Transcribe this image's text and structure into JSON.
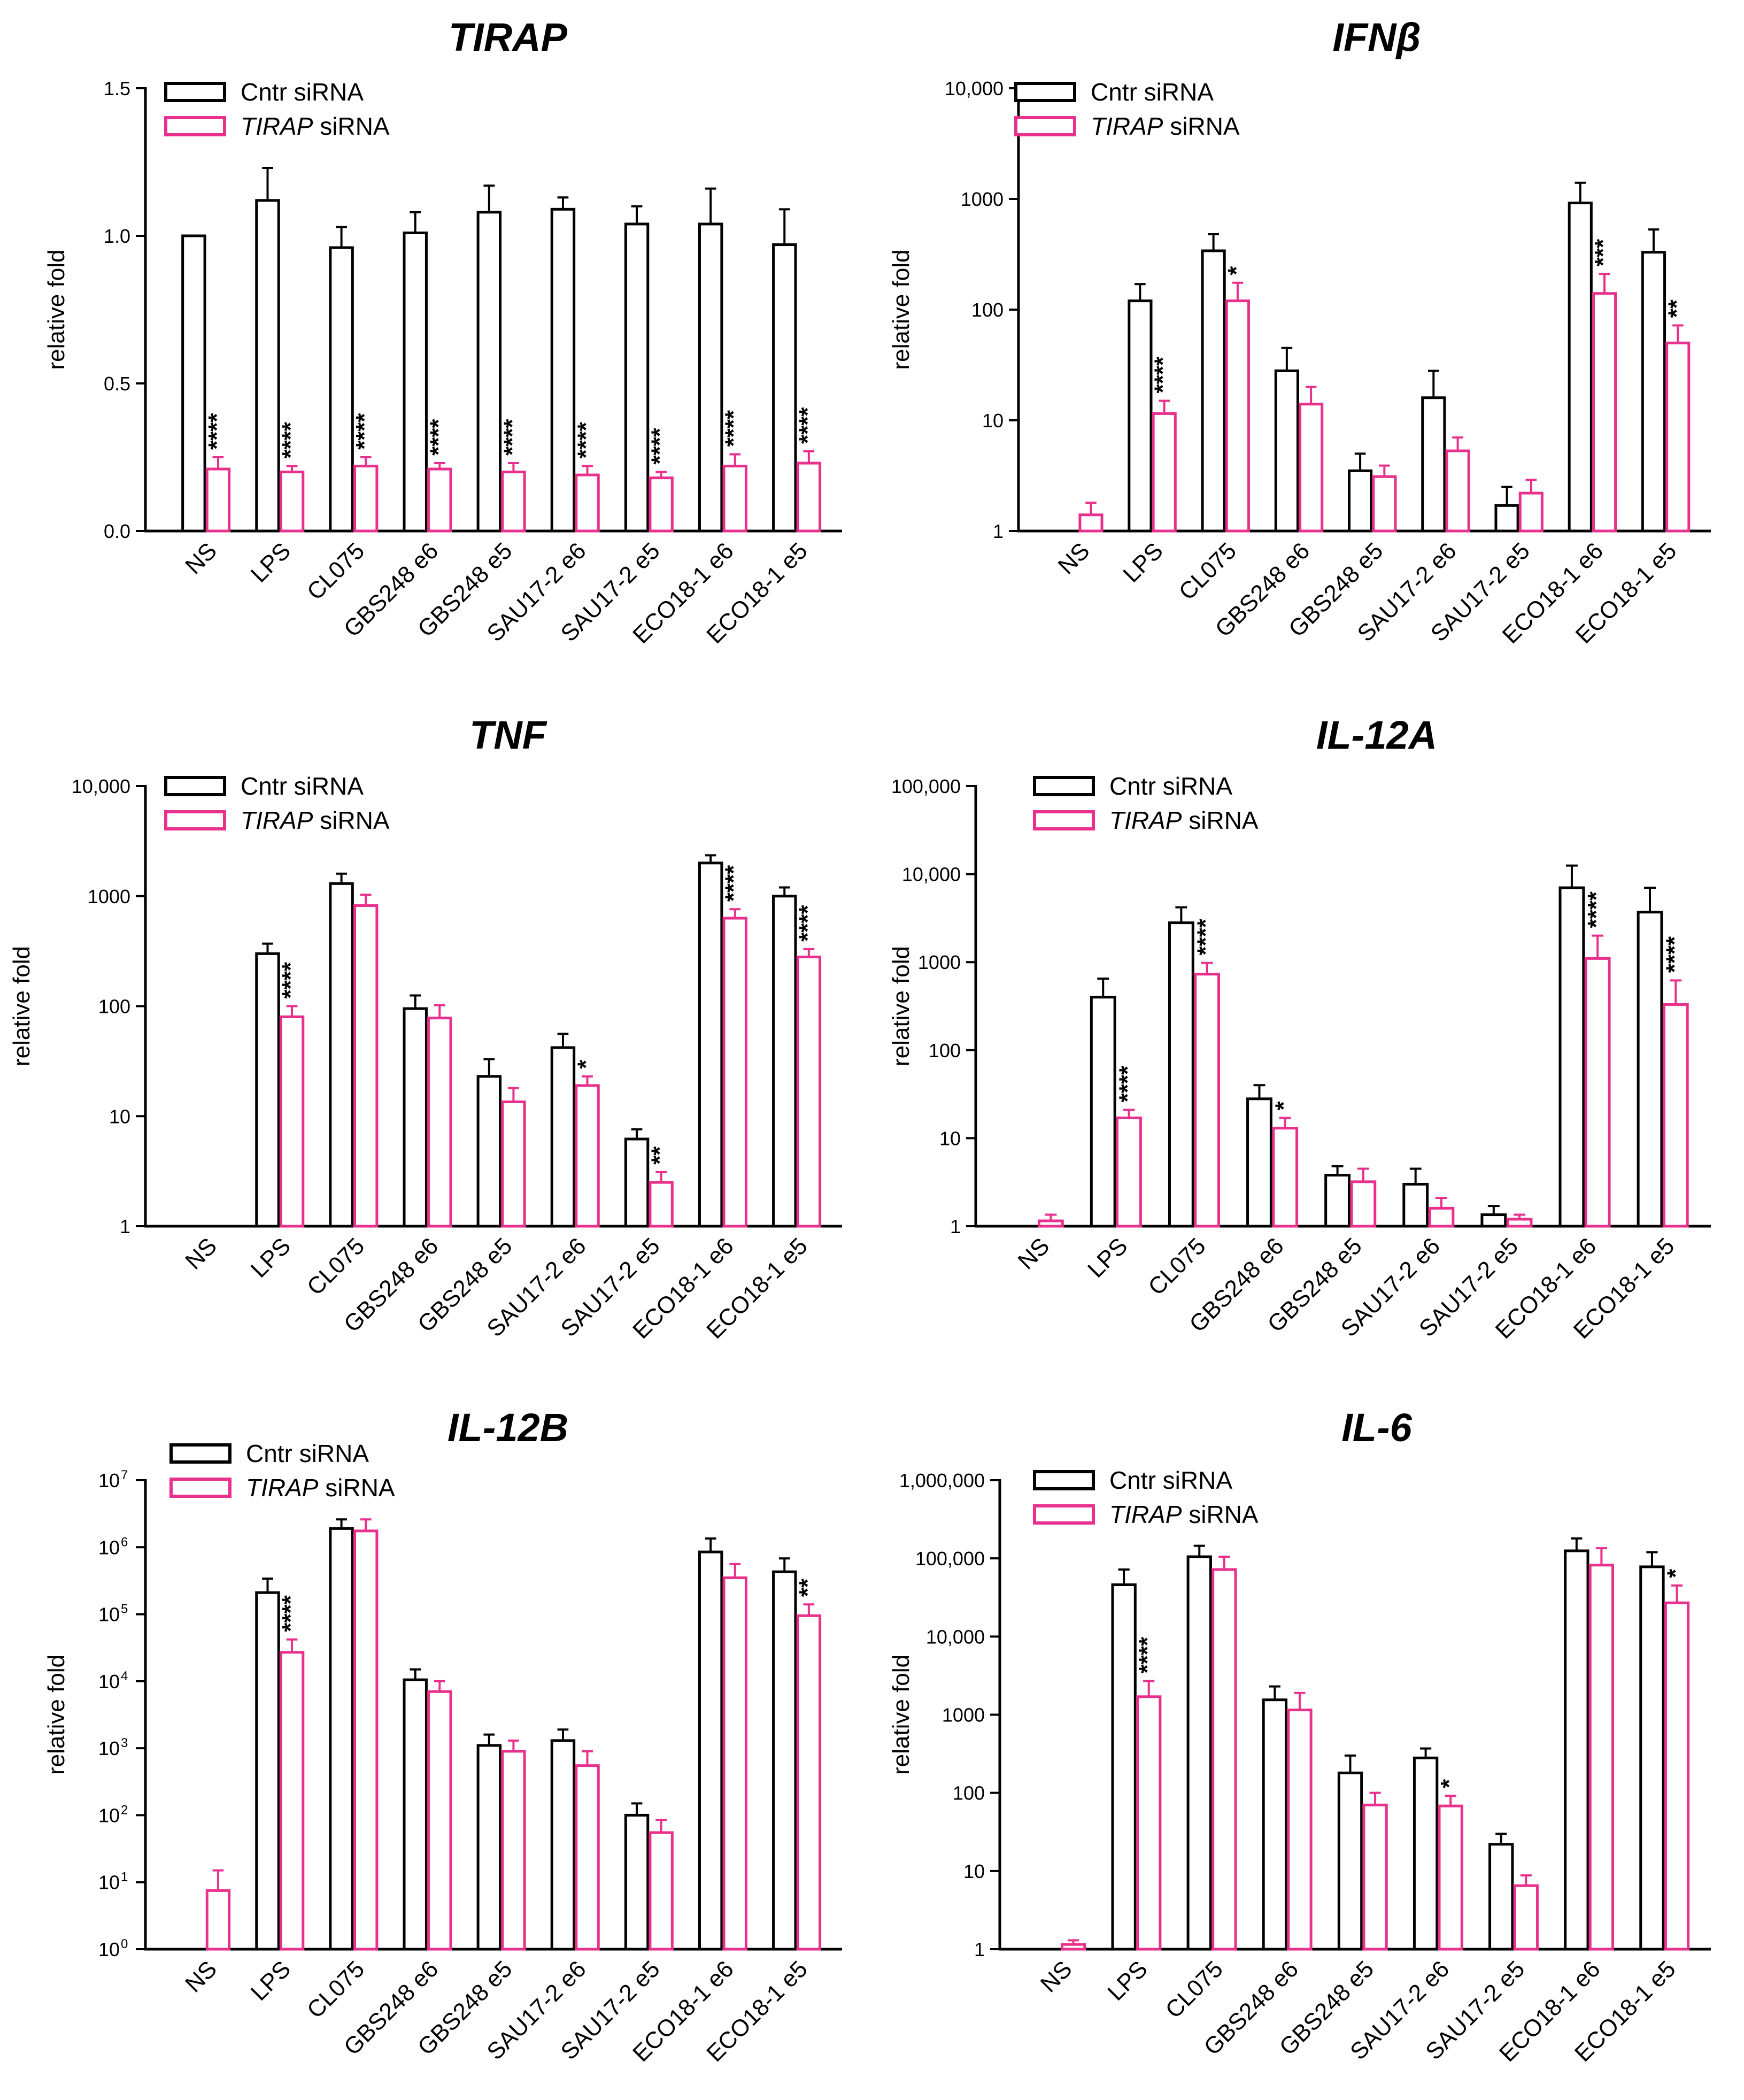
{
  "chart_data": [
    {
      "type": "bar",
      "title": "TIRAP",
      "scale": "linear",
      "ylim": [
        0,
        1.5
      ],
      "ylabel": "relative fold",
      "tick_values": [
        0,
        0.5,
        1.0,
        1.5
      ],
      "tick_labels": [
        "0.0",
        "0.5",
        "1.0",
        "1.5"
      ],
      "categories": [
        "NS",
        "LPS",
        "CL075",
        "GBS248 e6",
        "GBS248 e5",
        "SAU17-2 e6",
        "SAU17-2 e5",
        "ECO18-1 e6",
        "ECO18-1 e5"
      ],
      "legend": {
        "series": [
          {
            "name": "Cntr siRNA",
            "italic": ""
          },
          {
            "name": " siRNA",
            "italic": "TIRAP"
          }
        ]
      },
      "series": [
        {
          "name": "Cntr siRNA",
          "color": "#000000",
          "values": [
            1.0,
            1.12,
            0.96,
            1.01,
            1.08,
            1.09,
            1.04,
            1.04,
            0.97
          ],
          "errors": [
            1.0,
            1.23,
            1.03,
            1.08,
            1.17,
            1.13,
            1.1,
            1.16,
            1.09
          ]
        },
        {
          "name": "TIRAP siRNA",
          "color": "#e8308c",
          "values": [
            0.21,
            0.2,
            0.22,
            0.21,
            0.2,
            0.19,
            0.18,
            0.22,
            0.23
          ],
          "errors": [
            0.25,
            0.22,
            0.25,
            0.23,
            0.23,
            0.22,
            0.2,
            0.26,
            0.27
          ]
        }
      ],
      "significance": [
        "****",
        "****",
        "****",
        "****",
        "****",
        "****",
        "****",
        "****",
        "****"
      ]
    },
    {
      "type": "bar",
      "title": "IFNβ",
      "scale": "log",
      "ylim": [
        1,
        10000
      ],
      "ylabel": "relative fold",
      "tick_values": [
        1,
        10,
        100,
        1000,
        10000
      ],
      "tick_labels": [
        "1",
        "10",
        "100",
        "1000",
        "10,000"
      ],
      "categories": [
        "NS",
        "LPS",
        "CL075",
        "GBS248 e6",
        "GBS248 e5",
        "SAU17-2 e6",
        "SAU17-2 e5",
        "ECO18-1 e6",
        "ECO18-1 e5"
      ],
      "legend": {
        "series": [
          {
            "name": "Cntr siRNA",
            "italic": ""
          },
          {
            "name": " siRNA",
            "italic": "TIRAP"
          }
        ]
      },
      "series": [
        {
          "name": "Cntr siRNA",
          "color": "#000000",
          "values": [
            null,
            120,
            340,
            28,
            3.5,
            16,
            1.7,
            920,
            330
          ],
          "errors": [
            null,
            170,
            480,
            45,
            5.0,
            28,
            2.5,
            1400,
            530
          ]
        },
        {
          "name": "TIRAP siRNA",
          "color": "#e8308c",
          "values": [
            1.4,
            11.5,
            120,
            14,
            3.1,
            5.3,
            2.2,
            140,
            50
          ],
          "errors": [
            1.8,
            15,
            175,
            20,
            3.9,
            7.0,
            2.9,
            210,
            72
          ]
        }
      ],
      "significance": [
        "",
        "****",
        "*",
        "",
        "",
        "",
        "",
        "***",
        "**"
      ]
    },
    {
      "type": "bar",
      "title": "TNF",
      "scale": "log",
      "ylim": [
        1,
        10000
      ],
      "ylabel": "relative fold",
      "tick_values": [
        1,
        10,
        100,
        1000,
        10000
      ],
      "tick_labels": [
        "1",
        "10",
        "100",
        "1000",
        "10,000"
      ],
      "categories": [
        "NS",
        "LPS",
        "CL075",
        "GBS248 e6",
        "GBS248 e5",
        "SAU17-2 e6",
        "SAU17-2 e5",
        "ECO18-1 e6",
        "ECO18-1 e5"
      ],
      "legend": {
        "series": [
          {
            "name": "Cntr siRNA",
            "italic": ""
          },
          {
            "name": " siRNA",
            "italic": "TIRAP"
          }
        ]
      },
      "series": [
        {
          "name": "Cntr siRNA",
          "color": "#000000",
          "values": [
            null,
            300,
            1300,
            95,
            23,
            42,
            6.2,
            2000,
            1000
          ],
          "errors": [
            null,
            370,
            1600,
            125,
            33,
            56,
            7.6,
            2350,
            1200
          ]
        },
        {
          "name": "TIRAP siRNA",
          "color": "#e8308c",
          "values": [
            null,
            80,
            820,
            78,
            13.5,
            19,
            2.5,
            630,
            280
          ],
          "errors": [
            null,
            100,
            1030,
            102,
            18,
            23,
            3.1,
            760,
            330
          ]
        }
      ],
      "significance": [
        "",
        "****",
        "",
        "",
        "",
        "*",
        "**",
        "****",
        "****"
      ]
    },
    {
      "type": "bar",
      "title": "IL-12A",
      "scale": "log",
      "ylim": [
        1,
        100000
      ],
      "ylabel": "relative fold",
      "tick_values": [
        1,
        10,
        100,
        1000,
        10000,
        100000
      ],
      "tick_labels": [
        "1",
        "10",
        "100",
        "1000",
        "10,000",
        "100,000"
      ],
      "categories": [
        "NS",
        "LPS",
        "CL075",
        "GBS248 e6",
        "GBS248 e5",
        "SAU17-2 e6",
        "SAU17-2 e5",
        "ECO18-1 e6",
        "ECO18-1 e5"
      ],
      "legend": {
        "series": [
          {
            "name": "Cntr siRNA",
            "italic": ""
          },
          {
            "name": " siRNA",
            "italic": "TIRAP"
          }
        ]
      },
      "series": [
        {
          "name": "Cntr siRNA",
          "color": "#000000",
          "values": [
            null,
            400,
            2800,
            28,
            3.8,
            3.0,
            1.35,
            7000,
            3700
          ],
          "errors": [
            null,
            650,
            4200,
            40,
            4.8,
            4.5,
            1.7,
            12500,
            7000
          ]
        },
        {
          "name": "TIRAP siRNA",
          "color": "#e8308c",
          "values": [
            1.15,
            17,
            730,
            13,
            3.2,
            1.6,
            1.2,
            1100,
            330
          ],
          "errors": [
            1.35,
            21,
            980,
            17,
            4.5,
            2.1,
            1.35,
            2000,
            620
          ]
        }
      ],
      "significance": [
        "",
        "****",
        "****",
        "*",
        "",
        "",
        "",
        "****",
        "****"
      ]
    },
    {
      "type": "bar",
      "title": "IL-12B",
      "scale": "log",
      "ylim": [
        1,
        10000000
      ],
      "ylabel": "relative fold",
      "tick_values": [
        1,
        10,
        100,
        1000,
        10000,
        100000,
        1000000,
        10000000
      ],
      "tick_labels": [
        "10",
        "10",
        "10",
        "10",
        "10",
        "10",
        "10",
        "10"
      ],
      "tick_exponents": [
        "0",
        "1",
        "2",
        "3",
        "4",
        "5",
        "6",
        "7"
      ],
      "categories": [
        "NS",
        "LPS",
        "CL075",
        "GBS248 e6",
        "GBS248 e5",
        "SAU17-2 e6",
        "SAU17-2 e5",
        "ECO18-1 e6",
        "ECO18-1 e5"
      ],
      "legend": {
        "series": [
          {
            "name": "Cntr siRNA",
            "italic": ""
          },
          {
            "name": " siRNA",
            "italic": "TIRAP"
          }
        ]
      },
      "series": [
        {
          "name": "Cntr siRNA",
          "color": "#000000",
          "values": [
            null,
            210000,
            1900000,
            10500,
            1100,
            1300,
            100,
            850000,
            430000
          ],
          "errors": [
            null,
            340000,
            2600000,
            15000,
            1600,
            1900,
            150,
            1350000,
            680000
          ]
        },
        {
          "name": "TIRAP siRNA",
          "color": "#e8308c",
          "values": [
            7.5,
            27000,
            1750000,
            7000,
            900,
            550,
            55,
            350000,
            95000
          ],
          "errors": [
            15,
            42000,
            2600000,
            10000,
            1300,
            900,
            85,
            560000,
            140000
          ]
        }
      ],
      "significance": [
        "",
        "****",
        "",
        "",
        "",
        "",
        "",
        "",
        "**"
      ]
    },
    {
      "type": "bar",
      "title": "IL-6",
      "scale": "log",
      "ylim": [
        1,
        1000000
      ],
      "ylabel": "relative fold",
      "tick_values": [
        1,
        10,
        100,
        1000,
        10000,
        100000,
        1000000
      ],
      "tick_labels": [
        "1",
        "10",
        "100",
        "1000",
        "10,000",
        "100,000",
        "1,000,000"
      ],
      "categories": [
        "NS",
        "LPS",
        "CL075",
        "GBS248 e6",
        "GBS248 e5",
        "SAU17-2 e6",
        "SAU17-2 e5",
        "ECO18-1 e6",
        "ECO18-1 e5"
      ],
      "legend": {
        "series": [
          {
            "name": "Cntr siRNA",
            "italic": ""
          },
          {
            "name": " siRNA",
            "italic": "TIRAP"
          }
        ]
      },
      "series": [
        {
          "name": "Cntr siRNA",
          "color": "#000000",
          "values": [
            null,
            46000,
            105000,
            1550,
            180,
            280,
            22,
            125000,
            78000
          ],
          "errors": [
            null,
            72000,
            145000,
            2300,
            300,
            370,
            30,
            180000,
            120000
          ]
        },
        {
          "name": "TIRAP siRNA",
          "color": "#e8308c",
          "values": [
            1.15,
            1700,
            72000,
            1150,
            70,
            68,
            6.5,
            82000,
            27000
          ],
          "errors": [
            1.3,
            2700,
            105000,
            1900,
            100,
            92,
            8.8,
            135000,
            45000
          ]
        }
      ],
      "significance": [
        "",
        "****",
        "",
        "",
        "",
        "*",
        "",
        "",
        "*"
      ]
    }
  ]
}
